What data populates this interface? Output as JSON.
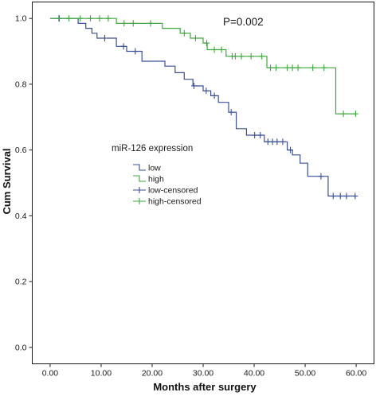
{
  "chart_data": {
    "type": "line",
    "title": "",
    "xlabel": "Months after surgery",
    "ylabel": "Cum Survival",
    "xlim": [
      -3.5,
      63.5
    ],
    "ylim": [
      -0.05,
      1.05
    ],
    "x_ticks": [
      "0.00",
      "10.00",
      "20.00",
      "30.00",
      "40.00",
      "50.00",
      "60.00"
    ],
    "y_ticks": [
      "0.0",
      "0.2",
      "0.4",
      "0.6",
      "0.8",
      "1.0"
    ],
    "grid": false,
    "annotation": "P=0.002",
    "legend": {
      "title": "miR-126 expression",
      "placement": "center-left",
      "entries": [
        "low",
        "high",
        "low-censored",
        "high-censored"
      ]
    },
    "series": [
      {
        "name": "low",
        "color": "#3a4f98",
        "steps": [
          [
            0,
            1.0
          ],
          [
            5.5,
            0.985
          ],
          [
            7,
            0.97
          ],
          [
            8.2,
            0.955
          ],
          [
            9.2,
            0.94
          ],
          [
            13,
            0.915
          ],
          [
            15,
            0.9
          ],
          [
            18,
            0.87
          ],
          [
            22.5,
            0.855
          ],
          [
            24.5,
            0.835
          ],
          [
            26.3,
            0.815
          ],
          [
            28,
            0.795
          ],
          [
            30,
            0.78
          ],
          [
            31.5,
            0.765
          ],
          [
            33,
            0.745
          ],
          [
            35,
            0.715
          ],
          [
            36.5,
            0.665
          ],
          [
            38.5,
            0.645
          ],
          [
            42,
            0.625
          ],
          [
            46.5,
            0.6
          ],
          [
            47.5,
            0.585
          ],
          [
            49,
            0.56
          ],
          [
            50.5,
            0.52
          ],
          [
            54.5,
            0.46
          ],
          [
            60,
            0.46
          ]
        ],
        "censored": [
          [
            1.8,
            1.0
          ],
          [
            10.7,
            0.94
          ],
          [
            14.4,
            0.915
          ],
          [
            16.7,
            0.9
          ],
          [
            28.2,
            0.795
          ],
          [
            30.6,
            0.78
          ],
          [
            32.2,
            0.765
          ],
          [
            35.5,
            0.715
          ],
          [
            40.1,
            0.645
          ],
          [
            41.2,
            0.645
          ],
          [
            42.7,
            0.625
          ],
          [
            43.6,
            0.625
          ],
          [
            44.5,
            0.625
          ],
          [
            45.6,
            0.625
          ],
          [
            47.1,
            0.6
          ],
          [
            53.1,
            0.52
          ],
          [
            55.5,
            0.46
          ],
          [
            56.9,
            0.46
          ],
          [
            58.1,
            0.46
          ],
          [
            59.8,
            0.46
          ]
        ]
      },
      {
        "name": "high",
        "color": "#3ea83e",
        "steps": [
          [
            0,
            1.0
          ],
          [
            13,
            0.985
          ],
          [
            22,
            0.97
          ],
          [
            25.5,
            0.955
          ],
          [
            27.5,
            0.94
          ],
          [
            30,
            0.925
          ],
          [
            30.8,
            0.905
          ],
          [
            34.5,
            0.885
          ],
          [
            42.5,
            0.85
          ],
          [
            56,
            0.71
          ],
          [
            60,
            0.71
          ]
        ],
        "censored": [
          [
            1.7,
            1.0
          ],
          [
            3.7,
            1.0
          ],
          [
            5.9,
            1.0
          ],
          [
            7.9,
            1.0
          ],
          [
            9.7,
            1.0
          ],
          [
            11.4,
            1.0
          ],
          [
            14.5,
            0.985
          ],
          [
            16.3,
            0.985
          ],
          [
            19.7,
            0.985
          ],
          [
            26.3,
            0.955
          ],
          [
            28.5,
            0.94
          ],
          [
            30.7,
            0.925
          ],
          [
            32.2,
            0.905
          ],
          [
            33.6,
            0.905
          ],
          [
            35.7,
            0.885
          ],
          [
            36.3,
            0.885
          ],
          [
            37.5,
            0.885
          ],
          [
            39.4,
            0.885
          ],
          [
            41.5,
            0.885
          ],
          [
            43.2,
            0.85
          ],
          [
            44.3,
            0.85
          ],
          [
            46.5,
            0.85
          ],
          [
            47.5,
            0.85
          ],
          [
            48.6,
            0.85
          ],
          [
            51.5,
            0.85
          ],
          [
            53.7,
            0.85
          ],
          [
            57.5,
            0.71
          ],
          [
            59.9,
            0.71
          ]
        ]
      }
    ]
  }
}
